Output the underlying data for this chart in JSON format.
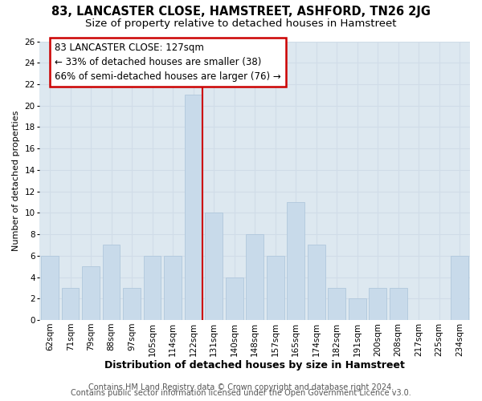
{
  "title": "83, LANCASTER CLOSE, HAMSTREET, ASHFORD, TN26 2JG",
  "subtitle": "Size of property relative to detached houses in Hamstreet",
  "xlabel": "Distribution of detached houses by size in Hamstreet",
  "ylabel": "Number of detached properties",
  "bar_color": "#c8daea",
  "bar_edge_color": "#b0c8dc",
  "grid_color": "#d0dce8",
  "plot_bg_color": "#dde8f0",
  "fig_bg_color": "#ffffff",
  "categories": [
    "62sqm",
    "71sqm",
    "79sqm",
    "88sqm",
    "97sqm",
    "105sqm",
    "114sqm",
    "122sqm",
    "131sqm",
    "140sqm",
    "148sqm",
    "157sqm",
    "165sqm",
    "174sqm",
    "182sqm",
    "191sqm",
    "200sqm",
    "208sqm",
    "217sqm",
    "225sqm",
    "234sqm"
  ],
  "values": [
    6,
    3,
    5,
    7,
    3,
    6,
    6,
    21,
    10,
    4,
    8,
    6,
    11,
    7,
    3,
    2,
    3,
    3,
    0,
    0,
    6
  ],
  "highlight_index": 7,
  "highlight_line_color": "#cc0000",
  "ylim": [
    0,
    26
  ],
  "yticks": [
    0,
    2,
    4,
    6,
    8,
    10,
    12,
    14,
    16,
    18,
    20,
    22,
    24,
    26
  ],
  "annotation_title": "83 LANCASTER CLOSE: 127sqm",
  "annotation_line1": "← 33% of detached houses are smaller (38)",
  "annotation_line2": "66% of semi-detached houses are larger (76) →",
  "annotation_box_color": "#ffffff",
  "annotation_box_edge": "#cc0000",
  "footer_line1": "Contains HM Land Registry data © Crown copyright and database right 2024.",
  "footer_line2": "Contains public sector information licensed under the Open Government Licence v3.0.",
  "title_fontsize": 10.5,
  "subtitle_fontsize": 9.5,
  "xlabel_fontsize": 9,
  "ylabel_fontsize": 8,
  "tick_fontsize": 7.5,
  "footer_fontsize": 7,
  "ann_fontsize": 8.5
}
